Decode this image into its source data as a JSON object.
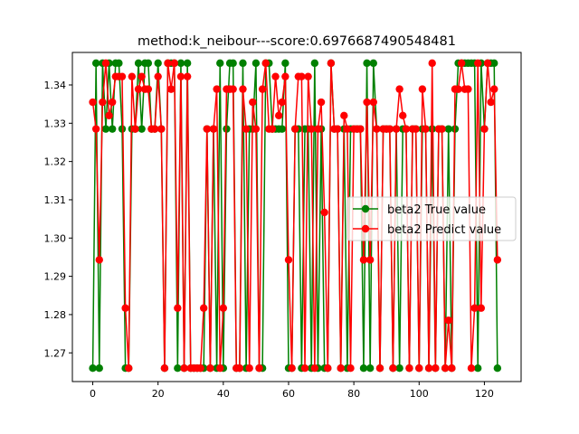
{
  "chart_data": {
    "type": "line",
    "title": "method:k_neibour---score:0.6976687490548481",
    "xlabel": "",
    "ylabel": "",
    "xlim": [
      -6.25,
      131.25
    ],
    "ylim": [
      1.2625,
      1.3485
    ],
    "x_ticks": [
      0,
      20,
      40,
      60,
      80,
      100,
      120
    ],
    "y_ticks": [
      1.27,
      1.28,
      1.29,
      1.3,
      1.31,
      1.32,
      1.33,
      1.34
    ],
    "y_tick_labels": [
      "1.27",
      "1.28",
      "1.29",
      "1.30",
      "1.31",
      "1.32",
      "1.33",
      "1.34"
    ],
    "grid": false,
    "legend_position": "center-right",
    "series": [
      {
        "name": "beta2 True value",
        "color": "#008000",
        "values": [
          1.266,
          1.3457,
          1.266,
          1.3457,
          1.3285,
          1.3457,
          1.3285,
          1.3457,
          1.3457,
          1.3285,
          1.266,
          1.266,
          1.3285,
          1.3285,
          1.3457,
          1.3285,
          1.3457,
          1.3457,
          1.3285,
          1.3285,
          1.3457,
          1.3285,
          1.266,
          1.3457,
          1.3457,
          1.3457,
          1.266,
          1.3457,
          1.266,
          1.3457,
          1.266,
          1.266,
          1.266,
          1.266,
          1.266,
          1.3285,
          1.266,
          1.3285,
          1.266,
          1.3457,
          1.266,
          1.3285,
          1.3457,
          1.3457,
          1.266,
          1.266,
          1.3457,
          1.266,
          1.3285,
          1.3285,
          1.3457,
          1.266,
          1.266,
          1.3457,
          1.3457,
          1.3285,
          1.3285,
          1.3285,
          1.3285,
          1.3457,
          1.266,
          1.266,
          1.3285,
          1.3285,
          1.266,
          1.3285,
          1.3285,
          1.266,
          1.3457,
          1.266,
          1.3285,
          1.266,
          1.266,
          1.3457,
          1.3285,
          1.3285,
          1.266,
          1.3285,
          1.266,
          1.3285,
          1.3285,
          1.3285,
          1.3285,
          1.266,
          1.3457,
          1.266,
          1.3457,
          1.3285,
          1.266,
          1.3285,
          1.3285,
          1.3285,
          1.266,
          1.3285,
          1.266,
          1.3285,
          1.3285,
          1.266,
          1.3285,
          1.3285,
          1.266,
          1.3285,
          1.3285,
          1.266,
          1.3285,
          1.266,
          1.3285,
          1.3285,
          1.266,
          1.3285,
          1.266,
          1.3285,
          1.3457,
          1.3457,
          1.3457,
          1.3457,
          1.3457,
          1.3457,
          1.266,
          1.3457,
          1.3285,
          1.3457,
          1.3457,
          1.3457,
          1.266
        ]
      },
      {
        "name": "beta2 Predict value",
        "color": "#ff0000",
        "values": [
          1.3355,
          1.3285,
          1.2943,
          1.3355,
          1.3457,
          1.332,
          1.3355,
          1.3422,
          1.3422,
          1.3422,
          1.2817,
          1.266,
          1.3422,
          1.3285,
          1.3389,
          1.3422,
          1.3389,
          1.3389,
          1.3285,
          1.3285,
          1.3422,
          1.3285,
          1.266,
          1.3457,
          1.3389,
          1.3457,
          1.2817,
          1.3422,
          1.266,
          1.3422,
          1.266,
          1.266,
          1.266,
          1.266,
          1.2817,
          1.3285,
          1.266,
          1.3285,
          1.3389,
          1.266,
          1.2817,
          1.3389,
          1.3389,
          1.3389,
          1.266,
          1.266,
          1.3389,
          1.3285,
          1.266,
          1.3355,
          1.3285,
          1.266,
          1.3389,
          1.3457,
          1.3285,
          1.3285,
          1.3422,
          1.332,
          1.3355,
          1.3422,
          1.2943,
          1.266,
          1.3285,
          1.3422,
          1.3422,
          1.266,
          1.3422,
          1.3285,
          1.266,
          1.3285,
          1.3355,
          1.3067,
          1.266,
          1.3457,
          1.3285,
          1.3285,
          1.266,
          1.332,
          1.3285,
          1.266,
          1.3285,
          1.3285,
          1.3285,
          1.2943,
          1.3355,
          1.2943,
          1.3355,
          1.3285,
          1.266,
          1.3285,
          1.3285,
          1.3285,
          1.266,
          1.3285,
          1.3389,
          1.332,
          1.3285,
          1.266,
          1.3285,
          1.3285,
          1.266,
          1.3389,
          1.3285,
          1.266,
          1.3457,
          1.266,
          1.3285,
          1.3285,
          1.266,
          1.2785,
          1.266,
          1.3389,
          1.3389,
          1.3457,
          1.3389,
          1.3389,
          1.266,
          1.2817,
          1.3457,
          1.2817,
          1.3285,
          1.3457,
          1.3355,
          1.3389,
          1.2943
        ]
      }
    ]
  }
}
